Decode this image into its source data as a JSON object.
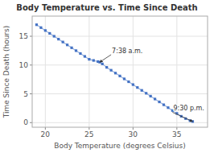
{
  "chart_data": {
    "type": "line",
    "title": "Body Temperature vs. Time Since Death",
    "xlabel": "Body Temperature (degrees Celsius)",
    "ylabel": "Time Since Death (hours)",
    "x": [
      19.0,
      19.5,
      20.0,
      20.5,
      21.0,
      21.5,
      22.0,
      22.5,
      23.0,
      23.5,
      24.0,
      24.5,
      25.0,
      25.5,
      26.0,
      26.2,
      26.5,
      27.0,
      27.5,
      28.0,
      28.5,
      29.0,
      29.5,
      30.0,
      30.5,
      31.0,
      31.5,
      32.0,
      32.5,
      33.0,
      33.5,
      34.0,
      34.5,
      35.0,
      35.5,
      36.0,
      36.5,
      36.8
    ],
    "series": [
      {
        "color": "#4472C4",
        "marker": "square",
        "line_style": "solid",
        "values": [
          17.0,
          16.5,
          16.0,
          15.5,
          15.0,
          14.5,
          14.0,
          13.5,
          13.0,
          12.5,
          12.0,
          11.5,
          11.0,
          10.8,
          10.6,
          10.5,
          10.2,
          9.6,
          9.1,
          8.6,
          8.1,
          7.6,
          7.1,
          6.6,
          6.1,
          5.6,
          5.1,
          4.6,
          4.1,
          3.6,
          3.1,
          2.6,
          2.1,
          1.6,
          1.1,
          0.7,
          0.35,
          0.2
        ]
      }
    ],
    "xlim": [
      18.5,
      38.5
    ],
    "ylim": [
      -0.8,
      18.5
    ],
    "xticks": [
      20,
      25,
      30,
      35
    ],
    "yticks": [
      0,
      5,
      10,
      15
    ],
    "grid": true,
    "annotations": [
      {
        "text": "7:38 a.m.",
        "x": 26.2,
        "y": 10.5,
        "text_x": 27.5,
        "text_y": 11.8
      },
      {
        "text": "9:30 p.m.",
        "x": 36.8,
        "y": 0.2,
        "text_x": 34.5,
        "text_y": 1.8
      }
    ]
  }
}
